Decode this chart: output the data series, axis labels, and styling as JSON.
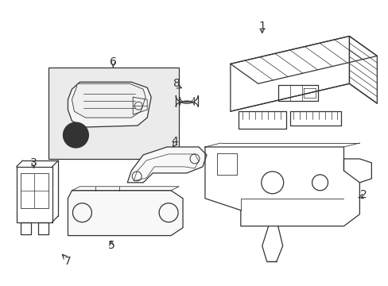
{
  "background_color": "#ffffff",
  "line_color": "#333333",
  "label_color": "#000000",
  "label_fontsize": 9,
  "fig_width": 4.89,
  "fig_height": 3.6,
  "dpi": 100,
  "box6_fill": "#e8e8e8",
  "box6_edge": "#333333"
}
